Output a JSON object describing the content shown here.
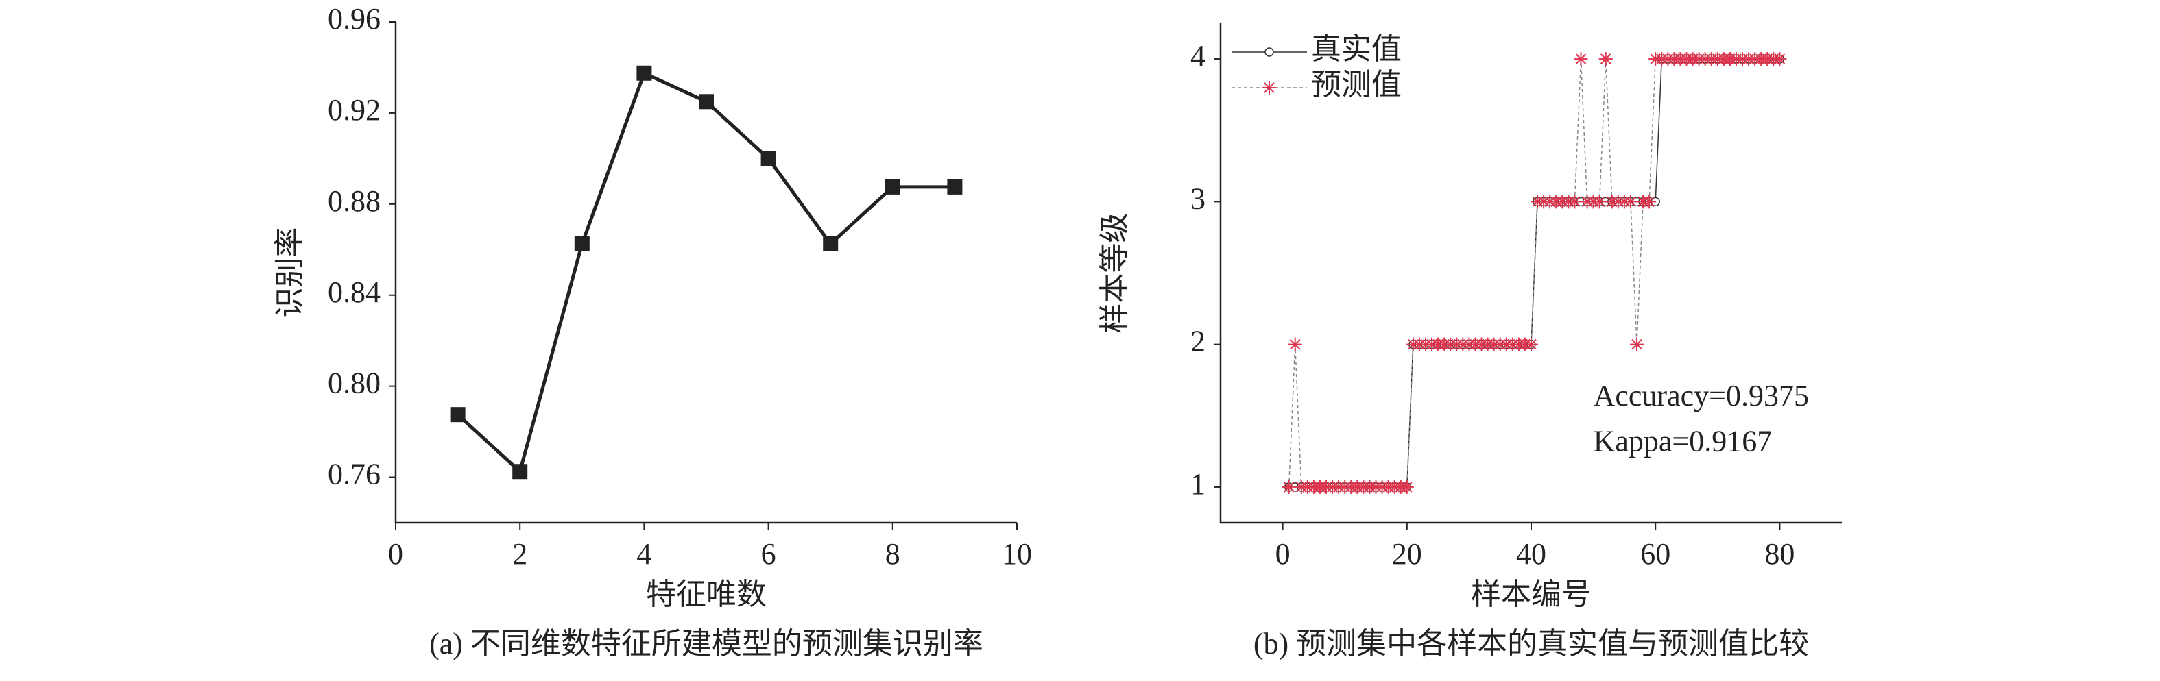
{
  "chart_data": [
    {
      "type": "line",
      "caption": "(a) 不同维数特征所建模型的预测集识别率",
      "xlabel": "特征唯数",
      "ylabel": "识别率",
      "x": [
        1,
        2,
        3,
        4,
        5,
        6,
        7,
        8,
        9
      ],
      "series": [
        {
          "color": "#222222",
          "marker": "square",
          "values": [
            0.7875,
            0.7625,
            0.8625,
            0.9375,
            0.925,
            0.9,
            0.8625,
            0.8875,
            0.8875
          ]
        }
      ],
      "xlim": [
        0,
        10
      ],
      "xticks": [
        0,
        2,
        4,
        6,
        8,
        10
      ],
      "ylim": [
        0.74,
        0.96
      ],
      "yticks": [
        0.76,
        {
          "value": 0.8,
          "label": "0.80"
        },
        0.84,
        0.88,
        0.92,
        0.96
      ]
    },
    {
      "type": "line",
      "caption": "(b) 预测集中各样本的真实值与预测值比较",
      "xlabel": "样本编号",
      "ylabel": "样本等级",
      "legend": "upper left",
      "annotations": [
        "Accuracy=0.9375",
        "Kappa=0.9167"
      ],
      "x": [
        1,
        2,
        3,
        4,
        5,
        6,
        7,
        8,
        9,
        10,
        11,
        12,
        13,
        14,
        15,
        16,
        17,
        18,
        19,
        20,
        21,
        22,
        23,
        24,
        25,
        26,
        27,
        28,
        29,
        30,
        31,
        32,
        33,
        34,
        35,
        36,
        37,
        38,
        39,
        40,
        41,
        42,
        43,
        44,
        45,
        46,
        47,
        48,
        49,
        50,
        51,
        52,
        53,
        54,
        55,
        56,
        57,
        58,
        59,
        60,
        61,
        62,
        63,
        64,
        65,
        66,
        67,
        68,
        69,
        70,
        71,
        72,
        73,
        74,
        75,
        76,
        77,
        78,
        79,
        80
      ],
      "series": [
        {
          "name": "真实值",
          "color": "#333333",
          "marker": "circle",
          "dash": false,
          "values": [
            1,
            1,
            1,
            1,
            1,
            1,
            1,
            1,
            1,
            1,
            1,
            1,
            1,
            1,
            1,
            1,
            1,
            1,
            1,
            1,
            2,
            2,
            2,
            2,
            2,
            2,
            2,
            2,
            2,
            2,
            2,
            2,
            2,
            2,
            2,
            2,
            2,
            2,
            2,
            2,
            3,
            3,
            3,
            3,
            3,
            3,
            3,
            3,
            3,
            3,
            3,
            3,
            3,
            3,
            3,
            3,
            3,
            3,
            3,
            3,
            4,
            4,
            4,
            4,
            4,
            4,
            4,
            4,
            4,
            4,
            4,
            4,
            4,
            4,
            4,
            4,
            4,
            4,
            4,
            4
          ]
        },
        {
          "name": "预测值",
          "color": "#e0334d",
          "marker": "asterisk",
          "dash": true,
          "values": [
            1,
            2,
            1,
            1,
            1,
            1,
            1,
            1,
            1,
            1,
            1,
            1,
            1,
            1,
            1,
            1,
            1,
            1,
            1,
            1,
            2,
            2,
            2,
            2,
            2,
            2,
            2,
            2,
            2,
            2,
            2,
            2,
            2,
            2,
            2,
            2,
            2,
            2,
            2,
            2,
            3,
            3,
            3,
            3,
            3,
            3,
            3,
            4,
            3,
            3,
            3,
            4,
            3,
            3,
            3,
            3,
            2,
            3,
            3,
            4,
            4,
            4,
            4,
            4,
            4,
            4,
            4,
            4,
            4,
            4,
            4,
            4,
            4,
            4,
            4,
            4,
            4,
            4,
            4,
            4
          ]
        }
      ],
      "xlim": [
        -10,
        90
      ],
      "xticks": [
        0,
        20,
        40,
        60,
        80
      ],
      "ylim": [
        0.75,
        4.25
      ],
      "yticks": [
        1,
        2,
        3,
        4
      ]
    }
  ]
}
